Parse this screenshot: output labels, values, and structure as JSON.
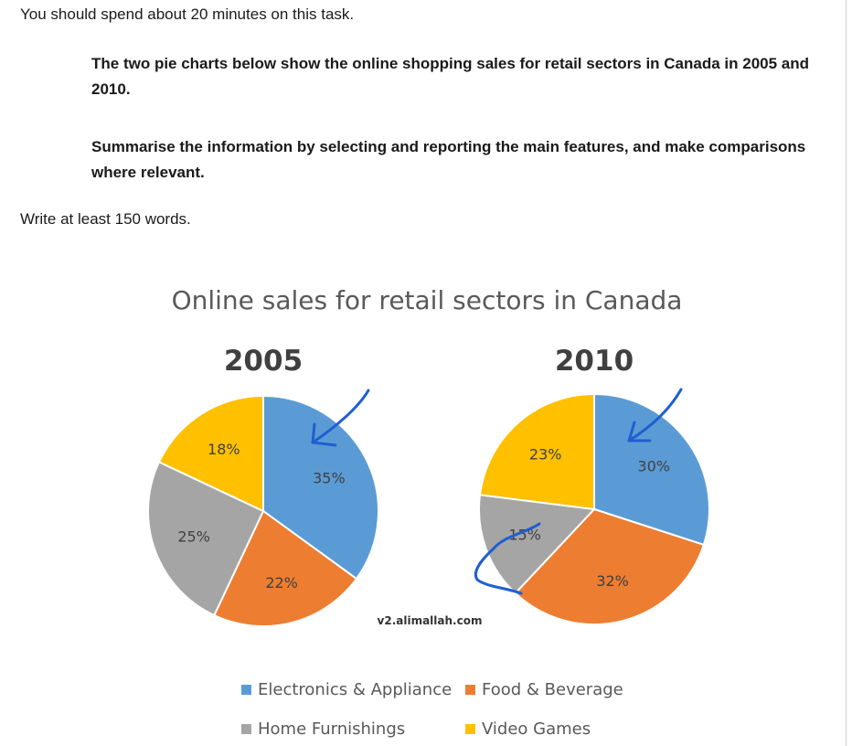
{
  "instructions": {
    "intro": "You should spend about 20 minutes on this task.",
    "task_line1": "The two pie charts below show the online shopping sales for retail sectors in Canada in 2005 and 2010.",
    "task_line2": "Summarise the information by selecting and reporting the main features, and make comparisons where relevant.",
    "word_count": "Write at least 150 words."
  },
  "watermark": "v2.alimallah.com",
  "chart_data": {
    "type": "pie",
    "title": "Online sales for retail sectors in Canada",
    "categories": [
      "Electronics & Appliance",
      "Food & Beverage",
      "Home Furnishings",
      "Video Games"
    ],
    "colors": [
      "#5b9bd5",
      "#ed7d31",
      "#a5a5a5",
      "#ffc000"
    ],
    "legend_position": "bottom",
    "series": [
      {
        "name": "2005",
        "values": [
          35,
          22,
          25,
          18
        ],
        "labels": [
          "35%",
          "22%",
          "25%",
          "18%"
        ]
      },
      {
        "name": "2010",
        "values": [
          30,
          32,
          15,
          23
        ],
        "labels": [
          "30%",
          "32%",
          "15%",
          "23%"
        ]
      }
    ]
  }
}
